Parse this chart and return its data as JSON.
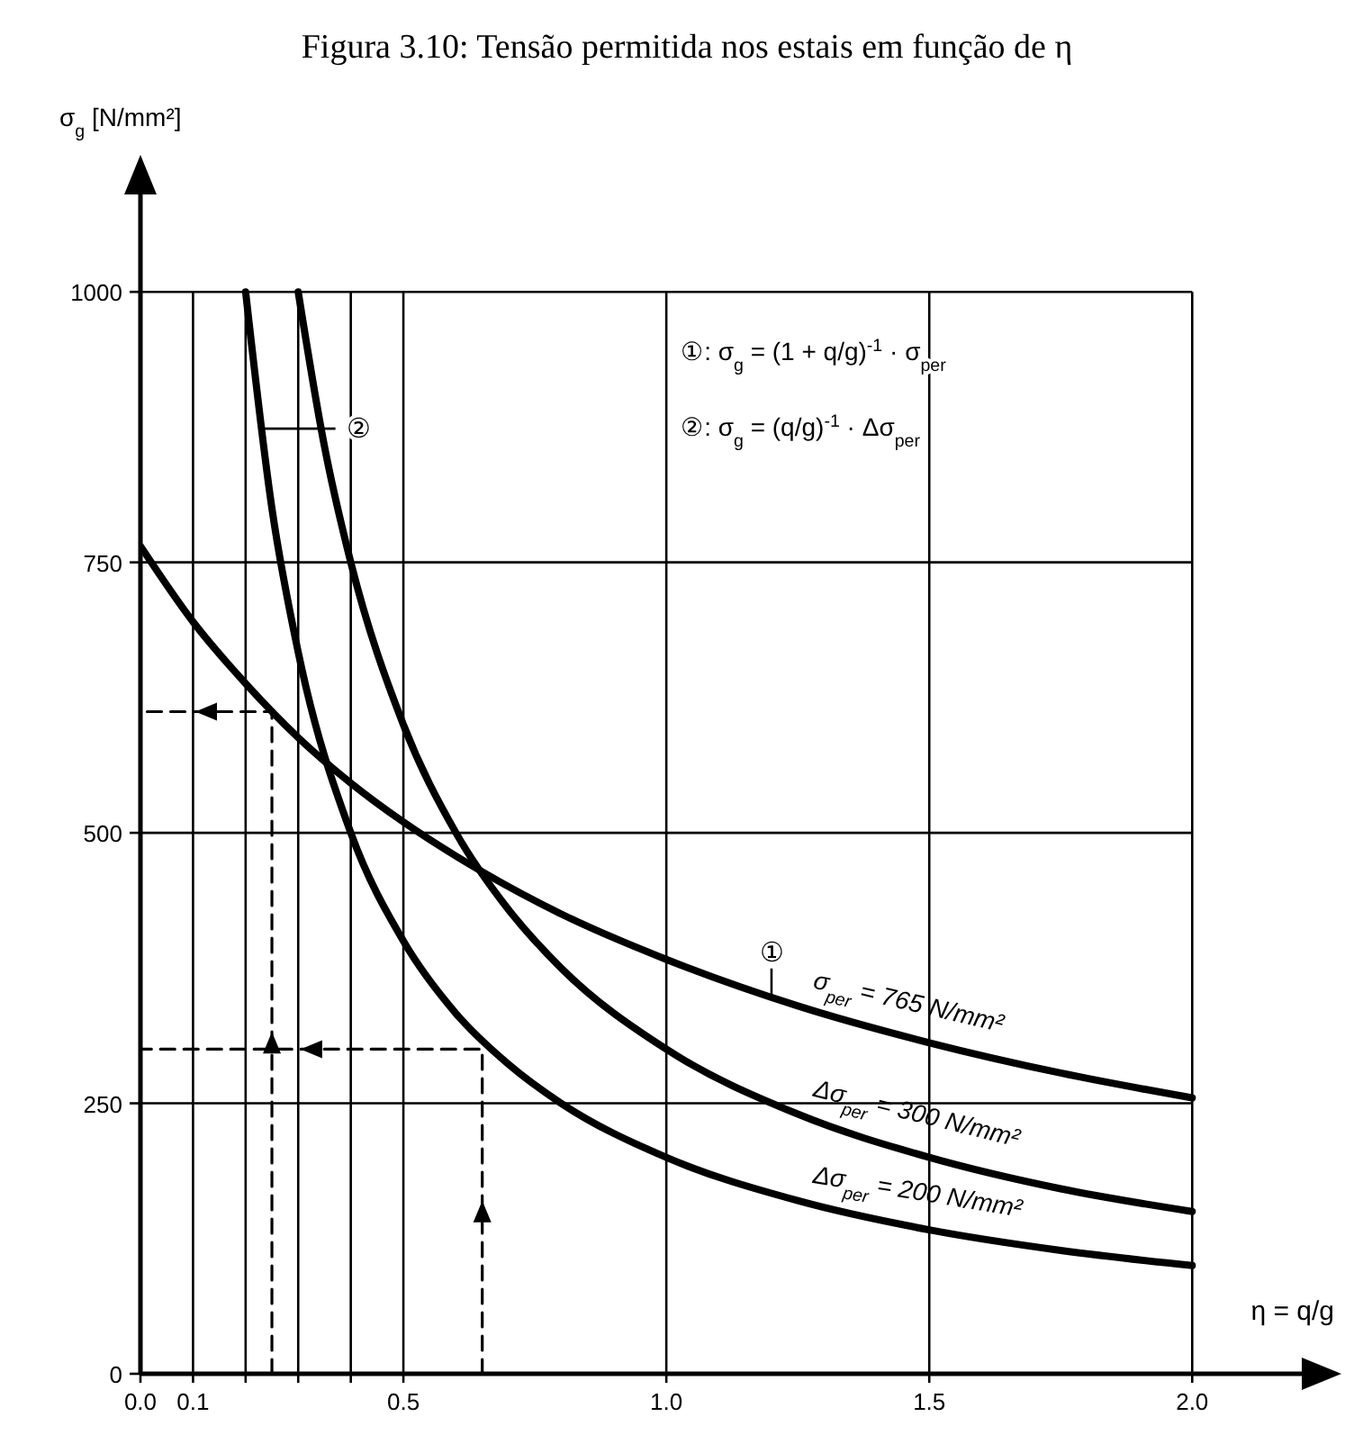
{
  "chart_data": {
    "type": "line",
    "title": "Figura 3.10: Tensão permitida nos estais em função de η",
    "xlabel": "η = q/g",
    "ylabel": "σ$_{g}$ [N/mm²]",
    "xlim": [
      0,
      2.27
    ],
    "ylim": [
      0,
      1120
    ],
    "xticks": [
      {
        "value": 0,
        "label": "0.0"
      },
      {
        "value": 0.1,
        "label": "0.1"
      },
      {
        "value": 0.2,
        "label": null
      },
      {
        "value": 0.3,
        "label": null
      },
      {
        "value": 0.4,
        "label": null
      },
      {
        "value": 0.5,
        "label": "0.5"
      },
      {
        "value": 1.0,
        "label": "1.0"
      },
      {
        "value": 1.5,
        "label": "1.5"
      },
      {
        "value": 2.0,
        "label": "2.0"
      }
    ],
    "yticks": [
      0,
      250,
      500,
      750,
      1000
    ],
    "grid": true,
    "series": [
      {
        "name": "σ$_{per}$ = 765 N/mm²",
        "color": "#000000",
        "x": [
          0,
          0.1,
          0.2,
          0.3,
          0.4,
          0.5,
          0.65,
          0.8,
          1.0,
          1.25,
          1.5,
          1.75,
          2.0
        ],
        "values": [
          765,
          695,
          638,
          588,
          546,
          510,
          464,
          425,
          383,
          340,
          306,
          278,
          255
        ]
      },
      {
        "name": "Δσ$_{per}$ = 300 N/mm²",
        "color": "#000000",
        "x": [
          0.3,
          0.35,
          0.4,
          0.5,
          0.6,
          0.7,
          0.8,
          1.0,
          1.25,
          1.5,
          1.75,
          2.0
        ],
        "values": [
          1000,
          857,
          750,
          600,
          500,
          429,
          375,
          300,
          240,
          200,
          171,
          150
        ]
      },
      {
        "name": "Δσ$_{per}$ = 200 N/mm²",
        "color": "#000000",
        "x": [
          0.2,
          0.25,
          0.3,
          0.4,
          0.5,
          0.6,
          0.7,
          0.8,
          1.0,
          1.25,
          1.5,
          1.75,
          2.0
        ],
        "values": [
          1000,
          800,
          667,
          500,
          400,
          333,
          286,
          250,
          200,
          160,
          133,
          114,
          100
        ]
      },
      {
        "type": "line",
        "line_style": "dashed",
        "color": "#000000",
        "x": [
          0.25,
          0.25,
          0
        ],
        "values": [
          0,
          612,
          612
        ]
      },
      {
        "type": "line",
        "line_style": "dashed",
        "color": "#000000",
        "x": [
          0.65,
          0.65,
          0
        ],
        "values": [
          0,
          300,
          300
        ]
      }
    ],
    "annotations": [
      {
        "text": "①",
        "x": 1.2,
        "y": 348
      },
      "②",
      "①: σ$_{g}$ = (1 + q/g)$^{-1}$ · σ$_{per}$",
      "②: σ$_{g}$ = (q/g)$^{-1}$ · Δσ$_{per}$"
    ]
  }
}
